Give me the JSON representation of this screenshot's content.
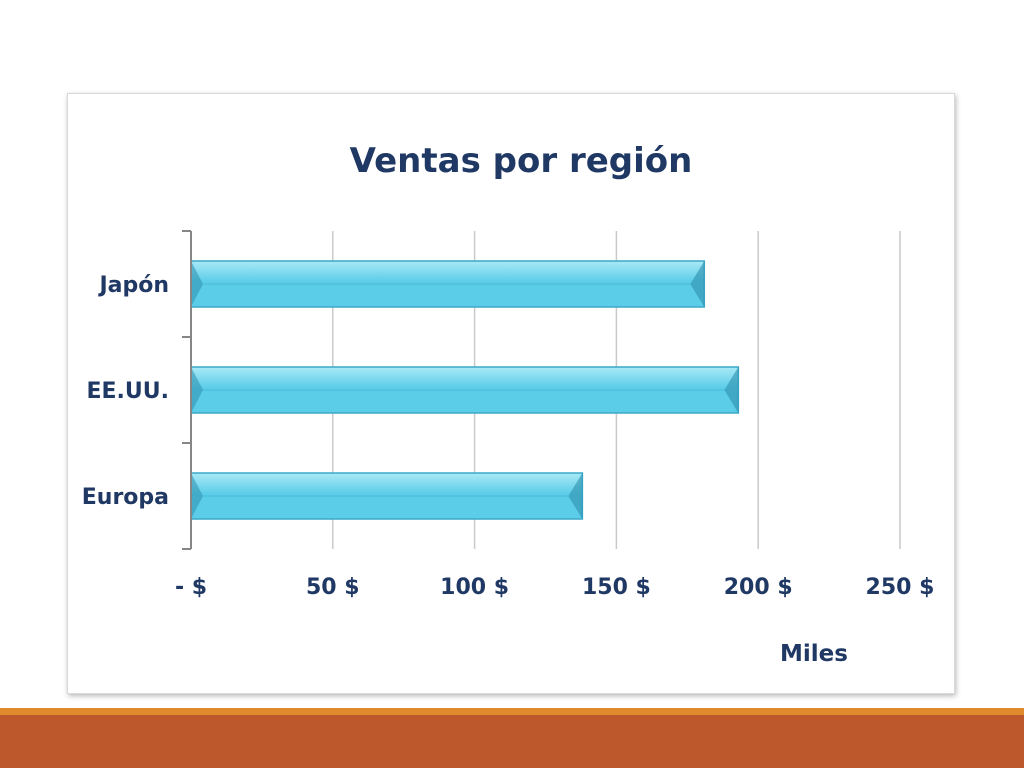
{
  "chart_data": {
    "type": "bar",
    "orientation": "horizontal",
    "title": "Ventas por región",
    "categories": [
      "Japón",
      "EE.UU.",
      "Europa"
    ],
    "series": [
      {
        "values": [
          181,
          193,
          138
        ]
      }
    ],
    "x_ticks": [
      "- $",
      "50 $",
      "100 $",
      "150 $",
      "200 $",
      "250 $"
    ],
    "xlim": [
      0,
      250
    ],
    "xlabel": "Miles",
    "ylabel": "",
    "grid": "vertical",
    "legend": "none",
    "colors": {
      "bar_fill": "#5ccde8",
      "bar_highlight": "#a9e9f6",
      "bar_edge": "#3aa8c8",
      "bar_dark": "#2d8fae",
      "title": "#1f3864",
      "text": "#1f3864",
      "grid": "#c9c9c9",
      "axis": "#868686"
    }
  },
  "footer": {
    "thin_color": "#e08a2e",
    "thick_color": "#bd582c"
  }
}
